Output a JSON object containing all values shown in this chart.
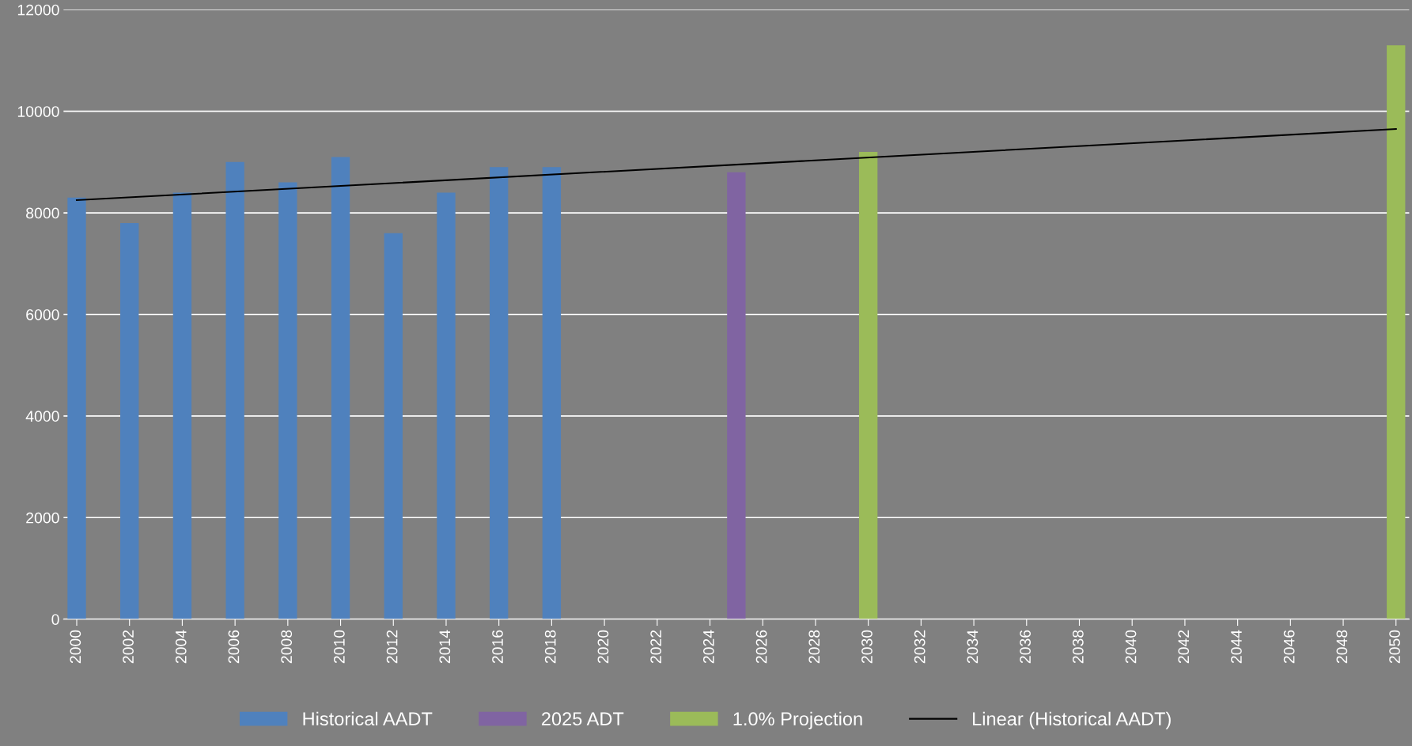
{
  "chart_data": {
    "type": "bar",
    "series": [
      {
        "name": "Historical AADT",
        "color": "#4f81bd",
        "x": [
          2000,
          2002,
          2004,
          2006,
          2008,
          2010,
          2012,
          2014,
          2016,
          2018
        ],
        "values": [
          8300,
          7800,
          8400,
          9000,
          8600,
          9100,
          7600,
          8400,
          8900,
          8900
        ]
      },
      {
        "name": "2025 ADT",
        "color": "#8064a2",
        "x": [
          2025
        ],
        "values": [
          8800
        ]
      },
      {
        "name": "1.0% Projection",
        "color": "#9bbb59",
        "x": [
          2030,
          2050
        ],
        "values": [
          9200,
          11300
        ]
      },
      {
        "name": "Linear (Historical AADT)",
        "type": "line",
        "color": "#000000",
        "x": [
          2000,
          2050
        ],
        "values": [
          8250,
          9650
        ]
      }
    ],
    "xlim": [
      1999.5,
      2050.5
    ],
    "xticks": [
      2000,
      2002,
      2004,
      2006,
      2008,
      2010,
      2012,
      2014,
      2016,
      2018,
      2020,
      2022,
      2024,
      2026,
      2028,
      2030,
      2032,
      2034,
      2036,
      2038,
      2040,
      2042,
      2044,
      2046,
      2048,
      2050
    ],
    "ylim": [
      0,
      12000
    ],
    "yticks": [
      0,
      2000,
      4000,
      6000,
      8000,
      10000,
      12000
    ],
    "grid": "y",
    "legend": "bottom"
  }
}
